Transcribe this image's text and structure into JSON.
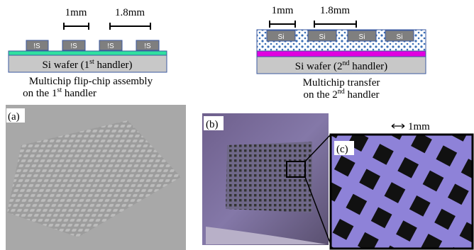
{
  "left_diagram": {
    "pitch_label": "1mm",
    "chip_label_width": "1.8mm",
    "chips": [
      "!S",
      "!S",
      "!S",
      "!S"
    ],
    "wafer_label": {
      "before": "Si wafer (1",
      "sup": "st",
      "after": " handler)"
    },
    "caption": {
      "line1": "Multichip flip-chip assembly",
      "line2_before": "on the 1",
      "line2_sup": "st",
      "line2_after": " handler"
    }
  },
  "right_diagram": {
    "pitch_label": "1mm",
    "chip_label_width": "1.8mm",
    "chips": [
      "Si",
      "Si",
      "Si",
      "Si"
    ],
    "wafer_label": {
      "before": "Si wafer (2",
      "sup": "nd",
      "after": " handler)"
    },
    "caption": {
      "line1": "Multichip transfer",
      "line2_before": "on the 2",
      "line2_sup": "nd",
      "line2_after": " handler"
    }
  },
  "photos": {
    "a_label": "(a)",
    "b_label": "(b)",
    "c_label": "(c)",
    "scale_label": "1mm"
  }
}
